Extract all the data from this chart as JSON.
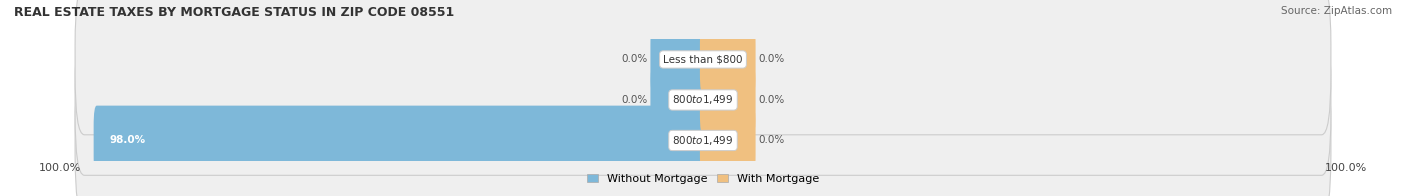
{
  "title": "REAL ESTATE TAXES BY MORTGAGE STATUS IN ZIP CODE 08551",
  "source": "Source: ZipAtlas.com",
  "rows": [
    {
      "label": "Less than $800",
      "without_mortgage": 0.0,
      "with_mortgage": 0.0
    },
    {
      "label": "$800 to $1,499",
      "without_mortgage": 0.0,
      "with_mortgage": 0.0
    },
    {
      "label": "$800 to $1,499",
      "without_mortgage": 98.0,
      "with_mortgage": 0.0
    }
  ],
  "color_without": "#7EB8D9",
  "color_with": "#F0C080",
  "bg_bar": "#EFEFEF",
  "bar_edge": "#D8D8D8",
  "axis_left_label": "100.0%",
  "axis_right_label": "100.0%",
  "legend_without": "Without Mortgage",
  "legend_with": "With Mortgage",
  "fig_width": 14.06,
  "fig_height": 1.96
}
